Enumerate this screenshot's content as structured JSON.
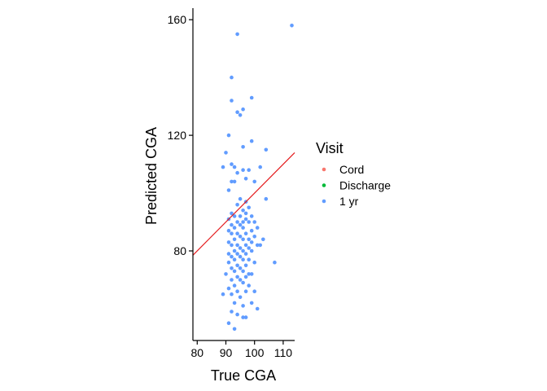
{
  "chart_data": {
    "type": "scatter",
    "title": "",
    "xlabel": "True CGA",
    "ylabel": "Predicted CGA",
    "xlim": [
      78.5,
      114
    ],
    "ylim": [
      49,
      164
    ],
    "x_ticks": [
      "80",
      "90",
      "100",
      "110"
    ],
    "y_ticks": [
      "80",
      "120",
      "160"
    ],
    "grid": false,
    "legend": {
      "title": "Visit",
      "placement": "right",
      "entries": [
        {
          "label": "Cord",
          "color": "#F8766D"
        },
        {
          "label": "Discharge",
          "color": "#00BA38"
        },
        {
          "label": "1 yr",
          "color": "#619CFF"
        }
      ]
    },
    "reference_line": {
      "color": "#E41A1C",
      "x": [
        78.5,
        114
      ],
      "y": [
        78.5,
        114
      ]
    },
    "series": [
      {
        "name": "1 yr",
        "color": "#619CFF",
        "points": [
          [
            113,
            158
          ],
          [
            94,
            155
          ],
          [
            92,
            140
          ],
          [
            99,
            133
          ],
          [
            92,
            132
          ],
          [
            96,
            129
          ],
          [
            94,
            128
          ],
          [
            95,
            127
          ],
          [
            91,
            120
          ],
          [
            99,
            118
          ],
          [
            96,
            116
          ],
          [
            90,
            114
          ],
          [
            104,
            115
          ],
          [
            89,
            109
          ],
          [
            92,
            110
          ],
          [
            93,
            109
          ],
          [
            96,
            108
          ],
          [
            98,
            108
          ],
          [
            102,
            109
          ],
          [
            94,
            107
          ],
          [
            92,
            104
          ],
          [
            93,
            104
          ],
          [
            97,
            105
          ],
          [
            100,
            104
          ],
          [
            91,
            101
          ],
          [
            95,
            98
          ],
          [
            97,
            97
          ],
          [
            104,
            98
          ],
          [
            94,
            96
          ],
          [
            98,
            95
          ],
          [
            96,
            94
          ],
          [
            92,
            93
          ],
          [
            93,
            92
          ],
          [
            95,
            92
          ],
          [
            97,
            93
          ],
          [
            99,
            92
          ],
          [
            91,
            91
          ],
          [
            94,
            90
          ],
          [
            96,
            90
          ],
          [
            97,
            91
          ],
          [
            98,
            90
          ],
          [
            92,
            89
          ],
          [
            95,
            89
          ],
          [
            100,
            90
          ],
          [
            93,
            88
          ],
          [
            96,
            88
          ],
          [
            91,
            87
          ],
          [
            94,
            86
          ],
          [
            97,
            86
          ],
          [
            99,
            87
          ],
          [
            92,
            86
          ],
          [
            95,
            85
          ],
          [
            101,
            88
          ],
          [
            93,
            84
          ],
          [
            96,
            84
          ],
          [
            98,
            84
          ],
          [
            100,
            85
          ],
          [
            91,
            83
          ],
          [
            94,
            82
          ],
          [
            97,
            82
          ],
          [
            99,
            83
          ],
          [
            92,
            82
          ],
          [
            95,
            81
          ],
          [
            98,
            81
          ],
          [
            101,
            82
          ],
          [
            93,
            80
          ],
          [
            96,
            80
          ],
          [
            91,
            79
          ],
          [
            94,
            79
          ],
          [
            97,
            79
          ],
          [
            99,
            80
          ],
          [
            92,
            78
          ],
          [
            95,
            78
          ],
          [
            102,
            82
          ],
          [
            93,
            77
          ],
          [
            96,
            77
          ],
          [
            98,
            77
          ],
          [
            103,
            84
          ],
          [
            91,
            76
          ],
          [
            94,
            75
          ],
          [
            97,
            75
          ],
          [
            100,
            76
          ],
          [
            92,
            74
          ],
          [
            95,
            74
          ],
          [
            107,
            76
          ],
          [
            93,
            73
          ],
          [
            96,
            73
          ],
          [
            98,
            72
          ],
          [
            90,
            72
          ],
          [
            94,
            71
          ],
          [
            97,
            71
          ],
          [
            99,
            72
          ],
          [
            92,
            70
          ],
          [
            95,
            70
          ],
          [
            96,
            69
          ],
          [
            93,
            68
          ],
          [
            98,
            68
          ],
          [
            91,
            67
          ],
          [
            94,
            66
          ],
          [
            97,
            66
          ],
          [
            92,
            65
          ],
          [
            95,
            64
          ],
          [
            89,
            65
          ],
          [
            100,
            66
          ],
          [
            93,
            62
          ],
          [
            96,
            61
          ],
          [
            99,
            62
          ],
          [
            92,
            59
          ],
          [
            94,
            58
          ],
          [
            96,
            57
          ],
          [
            101,
            60
          ],
          [
            91,
            55
          ],
          [
            93,
            53
          ],
          [
            97,
            57
          ]
        ]
      }
    ]
  }
}
